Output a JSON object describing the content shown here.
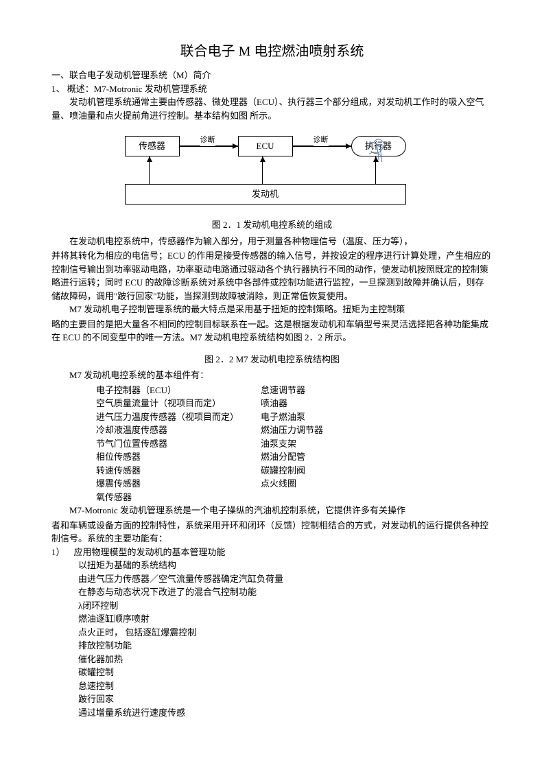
{
  "title": "联合电子 M 电控燃油喷射系统",
  "section1": {
    "heading": "一、联合电子发动机管理系统（M）简介",
    "sub1": "1、 概述：M7-Motronic  发动机管理系统",
    "p1": "发动机管理系统通常主要由传感器、微处理器（ECU）、执行器三个部分组成，对发动机工作时的吸入空气量、喷油量和点火提前角进行控制。基本结构如图  所示。"
  },
  "diagram": {
    "sensor": "传感器",
    "ecu": "ECU",
    "actuator": "执行器",
    "engine": "发动机",
    "diag1": "诊断",
    "diag2": "诊断"
  },
  "caption1": "图  2．1    发动机电控系统的组成",
  "p2": "在发动机电控系统中，传感器作为输入部分，用于测量各种物理信号（温度、压力等），",
  "p3": "并将其转化为相应的电信号；ECU  的作用是接受传感器的输入信号，并按设定的程序进行计算处理，产生相应的控制信号输出到功率驱动电路，功率驱动电路通过驱动各个执行器执行不同的动作，使发动机按照既定的控制策略进行运转；同时  ECU  的故障诊断系统对系统中各部件或控制功能进行监控，一旦探测到故障并确认后，则存储故障码，调用\"跛行回家\"功能，当探测到故障被消除，则正常值恢复使用。",
  "p4": "M7 发动机电子控制管理系统的最大特点是采用基于扭矩的控制策略。扭矩为主控制策",
  "p5": "略的主要目的是把大量各不相同的控制目标联系在一起。这是根据发动机和车辆型号来灵活选择把各种功能集成在  ECU  的不同变型中的唯一方法。M7  发动机电控系统结构如图  2．2  所示。",
  "caption2": "图  2．2    M7  发动机电控系统结构图",
  "p6": "M7  发动机电控系统的基本组件有：",
  "components": {
    "left": [
      "电子控制器（ECU）",
      "空气质量流量计（视项目而定）",
      "进气压力温度传感器（视项目而定）",
      "冷却液温度传感器",
      "节气门位置传感器",
      "相位传感器",
      "转速传感器",
      "爆震传感器",
      "氧传感器"
    ],
    "right": [
      "怠速调节器",
      "喷油器",
      "电子燃油泵",
      "燃油压力调节器",
      "油泵支架",
      "燃油分配管",
      "碳罐控制阀",
      "点火线圈"
    ]
  },
  "p7": "M7-Motronic  发动机管理系统是一个电子操纵的汽油机控制系统，它提供许多有关操作",
  "p8": "者和车辆或设备方面的控制特性，系统采用开环和闭环（反馈）控制相结合的方式，对发动机的运行提供各种控制信号。系统的主要功能有：",
  "feature_num": "1）",
  "feature_head": "应用物理模型的发动机的基本管理功能",
  "features": [
    "以扭矩为基础的系统结构",
    "由进气压力传感器／空气流量传感器确定汽缸负荷量",
    "在静态与动态状况下改进了的混合气控制功能",
    "λ闭环控制",
    "燃油逐缸顺序喷射",
    "点火正时，     包括逐缸爆震控制",
    "排放控制功能",
    "催化器加热",
    "碳罐控制",
    "怠速控制",
    "跛行回家",
    "通过增量系统进行速度传感"
  ]
}
